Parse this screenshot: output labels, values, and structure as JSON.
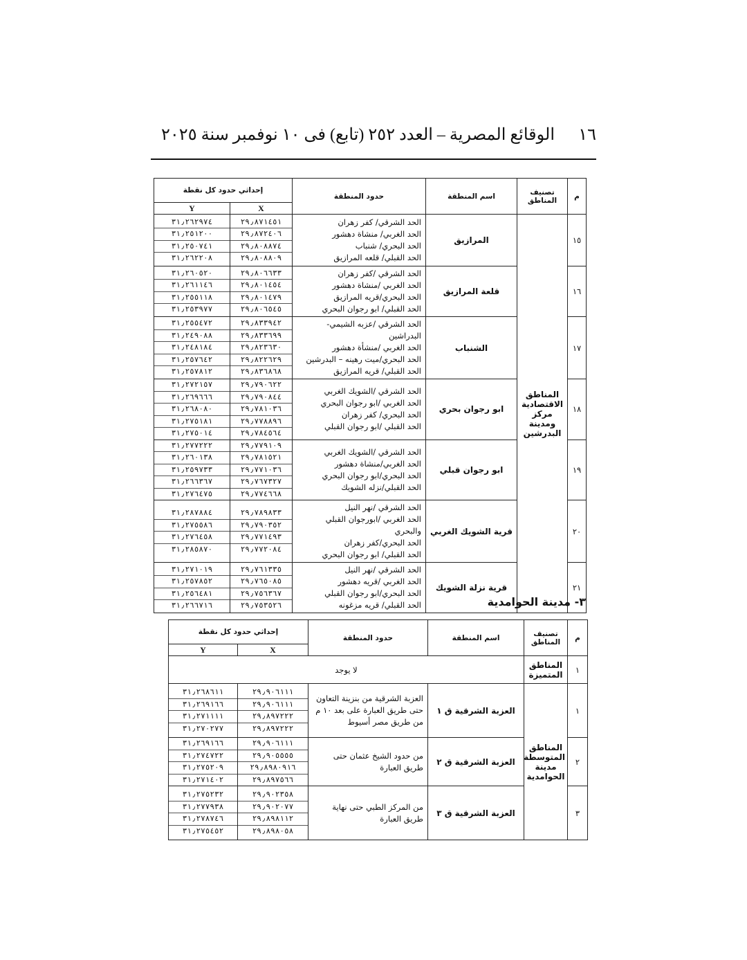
{
  "header": {
    "page_number": "١٦",
    "title": "الوقائع المصرية – العدد ٢٥٢ (تابع) فى ١٠ نوفمبر سنة ٢٠٢٥"
  },
  "table1": {
    "headers": {
      "no": "م",
      "classification": "تصنيف المناطق",
      "name": "اسم المنطقة",
      "bounds": "حدود المنطقة",
      "coordinates": "إحداثي حدود كل نقطة",
      "x": "X",
      "y": "Y"
    },
    "group": "المناطق الاقتصادية مركز ومدينة البدرشين",
    "rows": [
      {
        "no": "١٥",
        "name": "المرازيق",
        "bounds": [
          "الحد الشرقي/ كفر زهران",
          "الحد الغربي/ منشاة دهشور",
          "الحد البحري/ شنباب",
          "الحد القبلي/ قلعه المرازيق"
        ],
        "x": [
          "٢٩٫٨٧١٤٥١",
          "٢٩٫٨٧٢٤٠٦",
          "٢٩٫٨٠٨٨٧٤",
          "٢٩٫٨٠٨٨٠٩"
        ],
        "y": [
          "٣١٫٢٦٢٩٧٤",
          "٣١٫٢٥١٢٠٠",
          "٣١٫٢٥٠٧٤١",
          "٣١٫٢٦٢٢٠٨"
        ]
      },
      {
        "no": "١٦",
        "name": "قلعة المرازيق",
        "bounds": [
          "الحد الشرقي /كفر زهران",
          "الحد الغربي /منشاة دهشور",
          "الحد البحري/قريه المرازيق",
          "الحد القبلي/ ابو رجوان البحري"
        ],
        "x": [
          "٢٩٫٨٠٦٦٣٣",
          "٢٩٫٨٠١٤٥٤",
          "٢٩٫٨٠١٤٧٩",
          "٢٩٫٨٠٦٥٤٥"
        ],
        "y": [
          "٣١٫٢٦٠٥٢٠",
          "٣١٫٢٦١١٤٦",
          "٣١٫٢٥٥١١٨",
          "٣١٫٢٥٣٩٧٧"
        ]
      },
      {
        "no": "١٧",
        "name": "الشنباب",
        "bounds": [
          "الحد الشرقي /عزبه الشيمي- البدراشين",
          "الحد الغربي /منشأة دهشور",
          "الحد البحري/ميت رهينه – البدرشين",
          "الحد القبلي/ قريه المرازيق"
        ],
        "x": [
          "٢٩٫٨٣٣٩٤٢",
          "٢٩٫٨٣٣٦٩٩",
          "٢٩٫٨٢٣٦٣٠",
          "٢٩٫٨٢٢٦٢٩",
          "٢٩٫٨٣٦٨٦٨"
        ],
        "y": [
          "٣١٫٢٥٥٤٧٢",
          "٣١٫٢٤٩٠٨٨",
          "٣١٫٢٤٨١٨٤",
          "٣١٫٢٥٧٦٤٢",
          "٣١٫٢٥٧٨١٢"
        ]
      },
      {
        "no": "١٨",
        "name": "ابو رجوان بحري",
        "bounds": [
          "الحد الشرقي /الشويك الغربي",
          "الحد الغربي /ابو رجوان البحري",
          "الحد البحري/ كفر زهران",
          "الحد القبلي /ابو رجوان القبلي"
        ],
        "x": [
          "٢٩٫٧٩٠٦٢٢",
          "٢٩٫٧٩٠٨٤٤",
          "٢٩٫٧٨١٠٣٦",
          "٢٩٫٧٧٨٨٩٦",
          "٢٩٫٧٨٤٥٦٤"
        ],
        "y": [
          "٣١٫٢٧٢١٥٧",
          "٣١٫٢٦٩٦٦٦",
          "٣١٫٢٦٨٠٨٠",
          "٣١٫٢٧٥١٨١",
          "٣١٫٢٧٥٠١٤"
        ]
      },
      {
        "no": "١٩",
        "name": "ابو رجوان قبلي",
        "bounds": [
          "الحد الشرقي /الشويك الغربي",
          "الحد الغربي/منشاة دهشور",
          "الحد البحري/ابو رجوان البحري",
          "الحد القبلي/نزله الشويك"
        ],
        "x": [
          "٢٩٫٧٧٩١٠٩",
          "٢٩٫٧٨١٥٢١",
          "٢٩٫٧٧١٠٣٦",
          "٢٩٫٧٦٧٣٢٧",
          "٢٩٫٧٧٤٦٦٨"
        ],
        "y": [
          "٣١٫٢٧٧٢٢٢",
          "٣١٫٢٦٠١٣٨",
          "٣١٫٢٥٩٧٣٣",
          "٣١٫٢٦٦٣٦٧",
          "٣١٫٢٧٦٤٧٥"
        ]
      },
      {
        "no": "٢٠",
        "name": "قرية الشويك الغربي",
        "bounds": [
          "الحد الشرقي /نهر النيل",
          "الحد الغربي /ابورجوان القبلي والبحري",
          "الحد البحري/كفر زهران",
          "الحد القبلي/ ابو رجوان البحري"
        ],
        "x": [
          "٢٩٫٧٨٩٨٣٣",
          "٢٩٫٧٩٠٣٥٢",
          "٢٩٫٧٧١٤٩٣",
          "٢٩٫٧٧٢٠٨٤"
        ],
        "y": [
          "٣١٫٢٨٧٨٨٤",
          "٣١٫٢٧٥٥٨٦",
          "٣١٫٢٧٦٤٥٨",
          "٣١٫٢٨٥٨٧٠"
        ]
      },
      {
        "no": "٢١",
        "name": "قرية نزلة الشويك",
        "bounds": [
          "الحد الشرقي /نهر النيل",
          "الحد الغربي /قريه دهشور",
          "الحد البحري/ابو رجوان القبلي",
          "الحد القبلي/ قريه مزغونه"
        ],
        "x": [
          "٢٩٫٧٦١٣٣٥",
          "٢٩٫٧٦٥٠٨٥",
          "٢٩٫٧٥٦٣٦٧",
          "٢٩٫٧٥٣٥٢٦"
        ],
        "y": [
          "٣١٫٢٧١٠١٩",
          "٣١٫٢٥٧٨٥٢",
          "٣١٫٢٥٦٤٨١",
          "٣١٫٢٦٦٧١٦"
        ]
      }
    ]
  },
  "section_title": "٣- مدينة الحوامدية",
  "table2": {
    "headers": {
      "no": "م",
      "classification": "تصنيف المناطق",
      "name": "اسم المنطقة",
      "bounds": "حدود المنطقة",
      "coordinates": "إحداثي حدود كل نقطة",
      "x": "X",
      "y": "Y"
    },
    "special_row": {
      "no": "١",
      "classification": "المناطق المتميزة",
      "note": "لا يوجد"
    },
    "group": "المناطق المتوسطة مدينة الحوامدية",
    "rows": [
      {
        "no": "١",
        "name": "العزبة الشرقية ق ١",
        "bounds": [
          "العزبة الشرقية من بنزينة التعاون حتى طريق العبارة على بعد ١٠ م من طريق مصر أسيوط"
        ],
        "x": [
          "٢٩٫٩٠٦١١١",
          "٢٩٫٩٠٦١١١",
          "٢٩٫٨٩٧٢٢٢",
          "٢٩٫٨٩٧٢٢٢"
        ],
        "y": [
          "٣١٫٢٦٨٦١١",
          "٣١٫٢٦٩١٦٦",
          "٣١٫٢٧١١١١",
          "٣١٫٢٧٠٢٧٧"
        ]
      },
      {
        "no": "٢",
        "name": "العزبة الشرقية ق ٢",
        "bounds": [
          "من حدود الشيخ عثمان حتى طريق العبارة"
        ],
        "x": [
          "٢٩٫٩٠٦١١١",
          "٢٩٫٩٠٥٥٥٥",
          "٢٩٫٨٩٨٠٩١٦",
          "٢٩٫٨٩٧٥٦٦"
        ],
        "y": [
          "٣١٫٢٦٩١٦٦",
          "٣١٫٢٧٤٧٢٢",
          "٣١٫٢٧٥٢٠٩",
          "٣١٫٢٧١٤٠٢"
        ]
      },
      {
        "no": "٣",
        "name": "العزبة الشرقية ق ٣",
        "bounds": [
          "من المركز الطبي حتى نهاية طريق العبارة"
        ],
        "x": [
          "٢٩٫٩٠٢٣٥٨",
          "٢٩٫٩٠٢٠٧٧",
          "٢٩٫٨٩٨١١٢",
          "٢٩٫٨٩٨٠٥٨"
        ],
        "y": [
          "٣١٫٢٧٥٢٣٢",
          "٣١٫٢٧٧٩٣٨",
          "٣١٫٢٧٨٧٤٦",
          "٣١٫٢٧٥٤٥٢"
        ]
      }
    ]
  }
}
